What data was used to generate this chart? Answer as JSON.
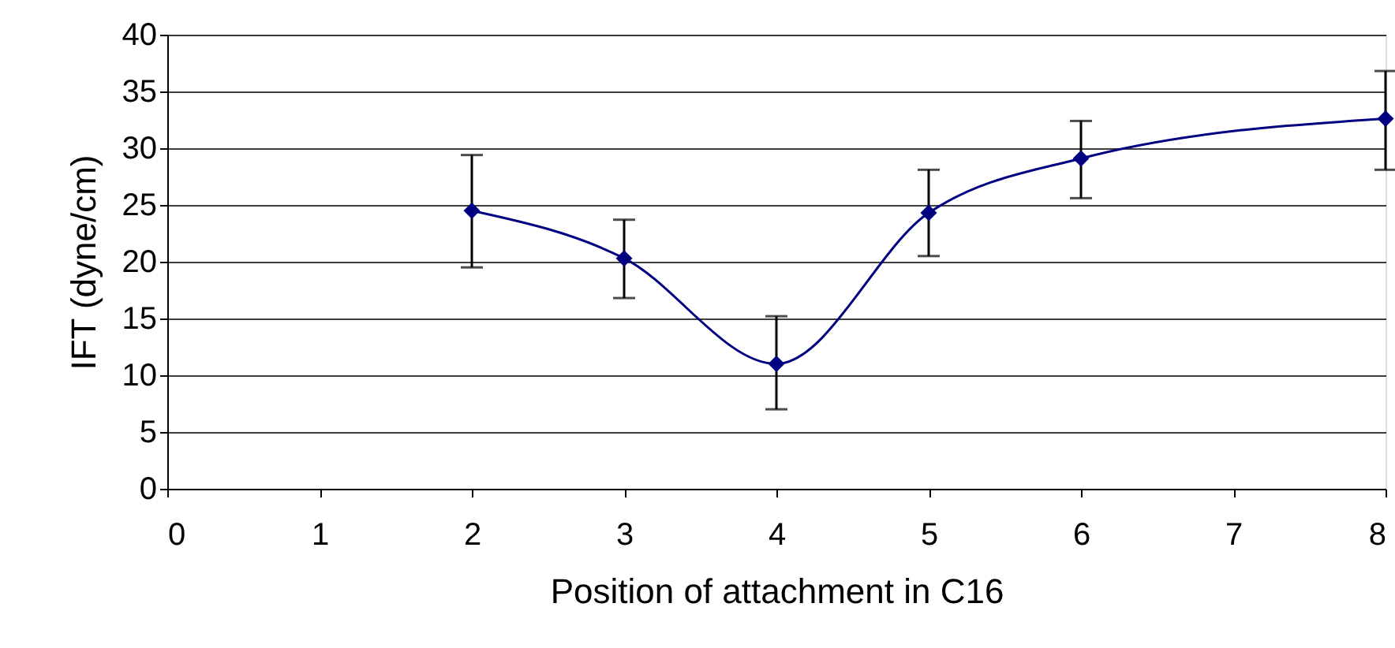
{
  "chart_data": {
    "type": "line",
    "xlabel": "Position of attachment in C16",
    "ylabel": "IFT (dyne/cm)",
    "x": [
      2,
      3,
      4,
      5,
      6,
      8
    ],
    "values": [
      24.5,
      20.3,
      11.0,
      24.3,
      29.1,
      32.6
    ],
    "color": "#000080",
    "errors": [
      [
        19.5,
        29.4
      ],
      [
        16.8,
        23.7
      ],
      [
        7.0,
        15.2
      ],
      [
        20.5,
        28.1
      ],
      [
        25.6,
        32.4
      ],
      [
        28.1,
        36.8
      ]
    ],
    "xlim": [
      0,
      8
    ],
    "xticks": [
      0,
      1,
      2,
      3,
      4,
      5,
      6,
      7,
      8
    ],
    "ylim": [
      0,
      40
    ],
    "yticks": [
      0,
      5,
      10,
      15,
      20,
      25,
      30,
      35,
      40
    ],
    "grid": "y",
    "marker": "diamond",
    "line_style": "solid"
  }
}
